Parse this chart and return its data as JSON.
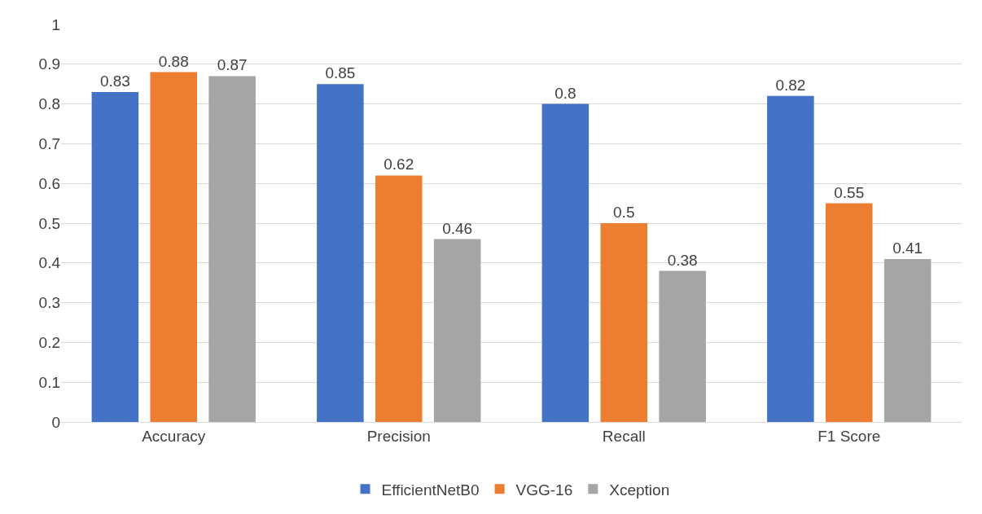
{
  "chart_data": {
    "type": "bar",
    "categories": [
      "Accuracy",
      "Precision",
      "Recall",
      "F1 Score"
    ],
    "series": [
      {
        "name": "EfficientNetB0",
        "color": "#4472c4",
        "values": [
          0.83,
          0.85,
          0.8,
          0.82
        ]
      },
      {
        "name": "VGG-16",
        "color": "#ed7d31",
        "values": [
          0.88,
          0.62,
          0.5,
          0.55
        ]
      },
      {
        "name": "Xception",
        "color": "#a5a5a5",
        "values": [
          0.87,
          0.46,
          0.38,
          0.41
        ]
      }
    ],
    "ylim": [
      0,
      1
    ],
    "yticks": [
      0,
      0.1,
      0.2,
      0.3,
      0.4,
      0.5,
      0.6,
      0.7,
      0.8,
      0.9,
      1
    ],
    "grid": "y",
    "legend": "bottom",
    "data_labels": true
  }
}
